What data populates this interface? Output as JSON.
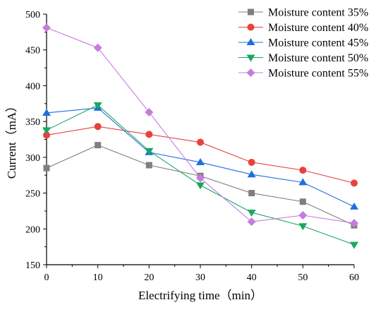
{
  "chart_data": {
    "type": "line",
    "title": "",
    "xlabel": "Electrifying time（min）",
    "ylabel": "Current（mA）",
    "x": [
      0,
      10,
      20,
      30,
      40,
      50,
      60
    ],
    "xlim": [
      0,
      60
    ],
    "ylim": [
      150,
      500
    ],
    "xticks": [
      0,
      10,
      20,
      30,
      40,
      50,
      60
    ],
    "yticks": [
      150,
      200,
      250,
      300,
      350,
      400,
      450,
      500
    ],
    "grid": false,
    "legend_position": "top-right",
    "series": [
      {
        "name": "Moisture content 35%",
        "color": "#7f7f7f",
        "marker": "square",
        "values": [
          285,
          317,
          289,
          274,
          250,
          238,
          205
        ]
      },
      {
        "name": "Moisture content 40%",
        "color": "#e8423f",
        "marker": "circle",
        "values": [
          331,
          343,
          332,
          321,
          293,
          282,
          264
        ]
      },
      {
        "name": "Moisture content 45%",
        "color": "#1f6fe0",
        "marker": "triangle-up",
        "values": [
          362,
          369,
          307,
          293,
          276,
          265,
          231
        ]
      },
      {
        "name": "Moisture content 50%",
        "color": "#1aa860",
        "marker": "triangle-down",
        "values": [
          338,
          373,
          309,
          261,
          223,
          204,
          178
        ]
      },
      {
        "name": "Moisture content 55%",
        "color": "#c77bdf",
        "marker": "diamond",
        "values": [
          481,
          453,
          363,
          271,
          210,
          219,
          208
        ]
      }
    ]
  }
}
